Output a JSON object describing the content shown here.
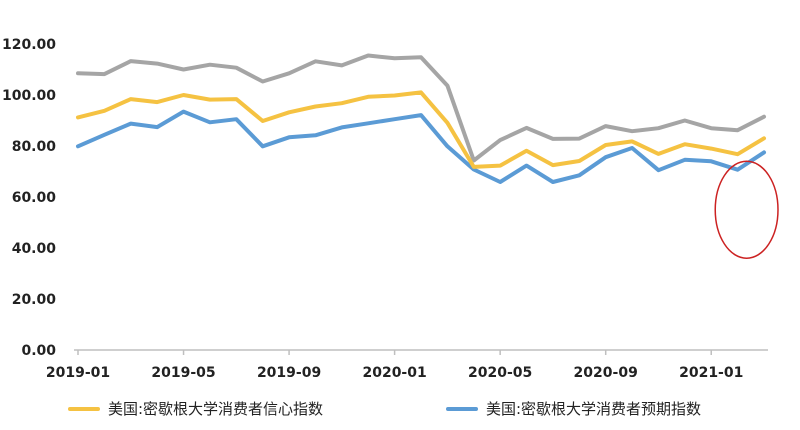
{
  "chart_data": {
    "type": "line",
    "x": [
      "2019-01",
      "2019-02",
      "2019-03",
      "2019-04",
      "2019-05",
      "2019-06",
      "2019-07",
      "2019-08",
      "2019-09",
      "2019-10",
      "2019-11",
      "2019-12",
      "2020-01",
      "2020-02",
      "2020-03",
      "2020-04",
      "2020-05",
      "2020-06",
      "2020-07",
      "2020-08",
      "2020-09",
      "2020-10",
      "2020-11",
      "2020-12",
      "2021-01",
      "2021-02",
      "2021-03"
    ],
    "x_tick_labels": [
      "2019-01",
      "2019-05",
      "2019-09",
      "2020-01",
      "2020-05",
      "2020-09",
      "2021-01"
    ],
    "ylim": [
      0,
      120
    ],
    "y_tick_labels": [
      "0.00",
      "20.00",
      "40.00",
      "60.00",
      "80.00",
      "100.00",
      "120.00"
    ],
    "grid": false,
    "series": [
      {
        "name": "美国:密歇根大学消费者信心指数",
        "color": "#F5C242",
        "values": [
          91.2,
          93.8,
          98.4,
          97.2,
          100.0,
          98.2,
          98.4,
          89.8,
          93.2,
          95.5,
          96.8,
          99.3,
          99.8,
          101.0,
          89.1,
          71.8,
          72.3,
          78.1,
          72.5,
          74.1,
          80.4,
          81.8,
          76.9,
          80.7,
          79.0,
          76.8,
          83.0
        ]
      },
      {
        "name": "美国:密歇根大学消费者预期指数",
        "color": "#5B9BD5",
        "values": [
          79.9,
          84.4,
          88.8,
          87.4,
          93.5,
          89.3,
          90.5,
          79.9,
          83.4,
          84.2,
          87.3,
          88.9,
          90.5,
          92.1,
          79.9,
          70.8,
          65.9,
          72.3,
          65.9,
          68.5,
          75.6,
          79.2,
          70.5,
          74.6,
          74.0,
          70.7,
          77.5
        ]
      },
      {
        "name": "",
        "color": "#A5A5A5",
        "values": [
          108.5,
          108.2,
          113.3,
          112.3,
          110.0,
          111.9,
          110.7,
          105.3,
          108.5,
          113.2,
          111.6,
          115.5,
          114.4,
          114.8,
          103.7,
          74.3,
          82.3,
          87.1,
          82.8,
          82.9,
          87.8,
          85.8,
          87.0,
          90.0,
          87.0,
          86.2,
          91.5
        ]
      }
    ],
    "annotation": {
      "shape": "ellipse",
      "color": "#CC2222",
      "x_from": "2021-01",
      "x_to": "2021-03",
      "y_from": 36,
      "y_to": 74
    }
  }
}
